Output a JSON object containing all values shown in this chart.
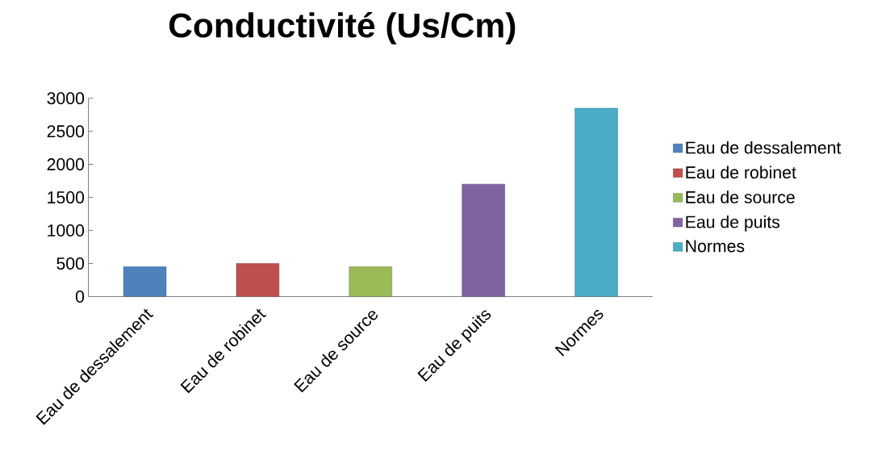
{
  "chart_data": {
    "type": "bar",
    "title": "Conductivité (Us/Cm)",
    "categories": [
      "Eau de dessalement",
      "Eau de robinet",
      "Eau de source",
      "Eau de puits",
      "Normes"
    ],
    "series": [
      {
        "name": "Eau de dessalement",
        "color": "#4f81bd",
        "values": [
          450,
          null,
          null,
          null,
          null
        ]
      },
      {
        "name": "Eau de robinet",
        "color": "#c0504d",
        "values": [
          null,
          500,
          null,
          null,
          null
        ]
      },
      {
        "name": "Eau de source",
        "color": "#9bbb59",
        "values": [
          null,
          null,
          450,
          null,
          null
        ]
      },
      {
        "name": "Eau de puits",
        "color": "#8064a2",
        "values": [
          null,
          null,
          null,
          1700,
          null
        ]
      },
      {
        "name": "Normes",
        "color": "#4bacc6",
        "values": [
          null,
          null,
          null,
          null,
          2850
        ]
      }
    ],
    "ylim": [
      0,
      3000
    ],
    "yticks": [
      0,
      500,
      1000,
      1500,
      2000,
      2500,
      3000
    ],
    "grid": false,
    "legend": "right"
  }
}
